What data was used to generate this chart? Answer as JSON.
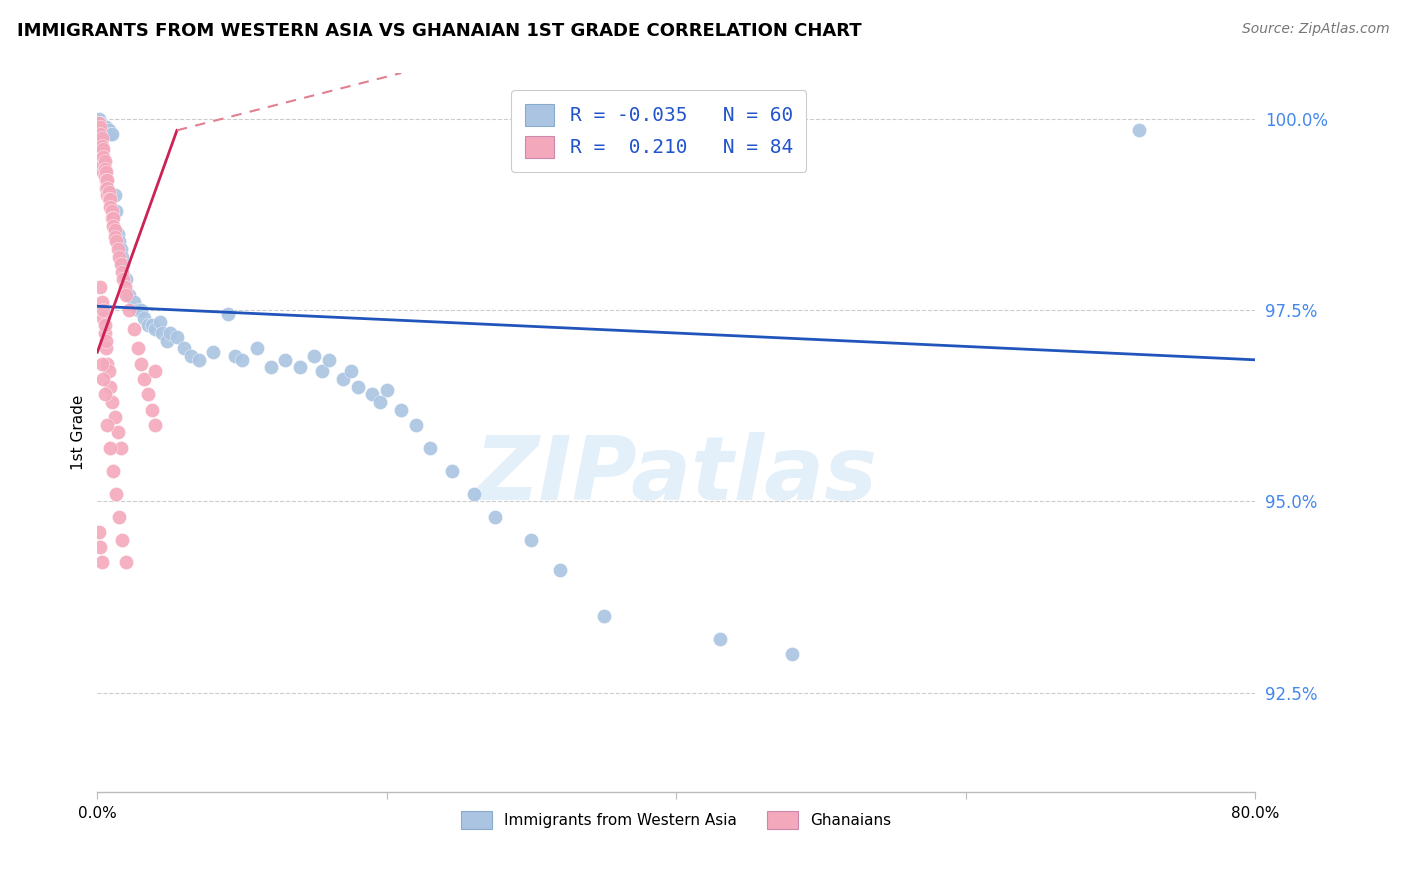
{
  "title": "IMMIGRANTS FROM WESTERN ASIA VS GHANAIAN 1ST GRADE CORRELATION CHART",
  "source": "Source: ZipAtlas.com",
  "ylabel": "1st Grade",
  "ytick_labels": [
    "92.5%",
    "95.0%",
    "97.5%",
    "100.0%"
  ],
  "ytick_values": [
    0.925,
    0.95,
    0.975,
    1.0
  ],
  "legend_blue_r": "-0.035",
  "legend_blue_n": "60",
  "legend_pink_r": "0.210",
  "legend_pink_n": "84",
  "legend_label_blue": "Immigrants from Western Asia",
  "legend_label_pink": "Ghanaians",
  "watermark_text": "ZIPatlas",
  "blue_color": "#aac4e2",
  "pink_color": "#f4a8bc",
  "blue_line_color": "#2255bb",
  "pink_line_color": "#cc2255",
  "pink_line_dashed_color": "#e08090",
  "xmin": 0.0,
  "xmax": 0.8,
  "ymin": 0.912,
  "ymax": 1.006,
  "blue_line_x0": 0.0,
  "blue_line_y0": 0.9755,
  "blue_line_x1": 0.8,
  "blue_line_y1": 0.9685,
  "pink_line_solid_x0": 0.0,
  "pink_line_solid_y0": 0.9695,
  "pink_line_solid_x1": 0.055,
  "pink_line_solid_y1": 0.9985,
  "pink_line_dashed_x0": 0.055,
  "pink_line_dashed_y0": 0.9985,
  "pink_line_dashed_x1": 0.21,
  "pink_line_dashed_y1": 1.006,
  "blue_x": [
    0.001,
    0.002,
    0.004,
    0.006,
    0.008,
    0.009,
    0.01,
    0.012,
    0.013,
    0.014,
    0.015,
    0.016,
    0.017,
    0.018,
    0.02,
    0.022,
    0.025,
    0.028,
    0.03,
    0.032,
    0.035,
    0.038,
    0.04,
    0.043,
    0.045,
    0.048,
    0.05,
    0.055,
    0.06,
    0.065,
    0.07,
    0.08,
    0.09,
    0.095,
    0.1,
    0.11,
    0.12,
    0.13,
    0.14,
    0.15,
    0.155,
    0.16,
    0.17,
    0.175,
    0.18,
    0.19,
    0.195,
    0.2,
    0.21,
    0.22,
    0.23,
    0.245,
    0.26,
    0.275,
    0.3,
    0.32,
    0.35,
    0.43,
    0.48,
    0.72
  ],
  "blue_y": [
    1.0,
    0.9995,
    0.999,
    0.999,
    0.9985,
    0.998,
    0.998,
    0.99,
    0.988,
    0.985,
    0.984,
    0.983,
    0.982,
    0.981,
    0.979,
    0.977,
    0.976,
    0.975,
    0.975,
    0.974,
    0.973,
    0.973,
    0.9725,
    0.9735,
    0.972,
    0.971,
    0.972,
    0.9715,
    0.97,
    0.969,
    0.9685,
    0.9695,
    0.9745,
    0.969,
    0.9685,
    0.97,
    0.9675,
    0.9685,
    0.9675,
    0.969,
    0.967,
    0.9685,
    0.966,
    0.967,
    0.965,
    0.964,
    0.963,
    0.9645,
    0.962,
    0.96,
    0.957,
    0.954,
    0.951,
    0.948,
    0.945,
    0.941,
    0.935,
    0.932,
    0.93,
    0.9985
  ],
  "pink_x": [
    0.001,
    0.001,
    0.001,
    0.001,
    0.001,
    0.002,
    0.002,
    0.002,
    0.002,
    0.002,
    0.002,
    0.003,
    0.003,
    0.003,
    0.003,
    0.003,
    0.004,
    0.004,
    0.004,
    0.004,
    0.005,
    0.005,
    0.005,
    0.006,
    0.006,
    0.006,
    0.007,
    0.007,
    0.007,
    0.008,
    0.008,
    0.009,
    0.009,
    0.01,
    0.01,
    0.011,
    0.011,
    0.012,
    0.012,
    0.013,
    0.014,
    0.015,
    0.016,
    0.017,
    0.018,
    0.019,
    0.02,
    0.022,
    0.025,
    0.028,
    0.03,
    0.032,
    0.035,
    0.038,
    0.04,
    0.002,
    0.003,
    0.004,
    0.004,
    0.005,
    0.005,
    0.006,
    0.006,
    0.007,
    0.008,
    0.009,
    0.01,
    0.012,
    0.014,
    0.016,
    0.003,
    0.004,
    0.005,
    0.007,
    0.009,
    0.011,
    0.013,
    0.015,
    0.017,
    0.02,
    0.001,
    0.002,
    0.003,
    0.04
  ],
  "pink_y": [
    0.9995,
    0.9985,
    0.9975,
    0.9965,
    0.9955,
    0.999,
    0.998,
    0.997,
    0.996,
    0.995,
    0.994,
    0.9975,
    0.9965,
    0.9955,
    0.9945,
    0.9935,
    0.996,
    0.995,
    0.994,
    0.993,
    0.9945,
    0.9935,
    0.9925,
    0.993,
    0.992,
    0.991,
    0.992,
    0.991,
    0.99,
    0.9905,
    0.9895,
    0.9895,
    0.9885,
    0.988,
    0.987,
    0.987,
    0.986,
    0.9855,
    0.9845,
    0.984,
    0.983,
    0.982,
    0.981,
    0.98,
    0.979,
    0.978,
    0.977,
    0.975,
    0.9725,
    0.97,
    0.968,
    0.966,
    0.964,
    0.962,
    0.96,
    0.978,
    0.976,
    0.974,
    0.975,
    0.972,
    0.973,
    0.97,
    0.971,
    0.968,
    0.967,
    0.965,
    0.963,
    0.961,
    0.959,
    0.957,
    0.968,
    0.966,
    0.964,
    0.96,
    0.957,
    0.954,
    0.951,
    0.948,
    0.945,
    0.942,
    0.946,
    0.944,
    0.942,
    0.967
  ]
}
